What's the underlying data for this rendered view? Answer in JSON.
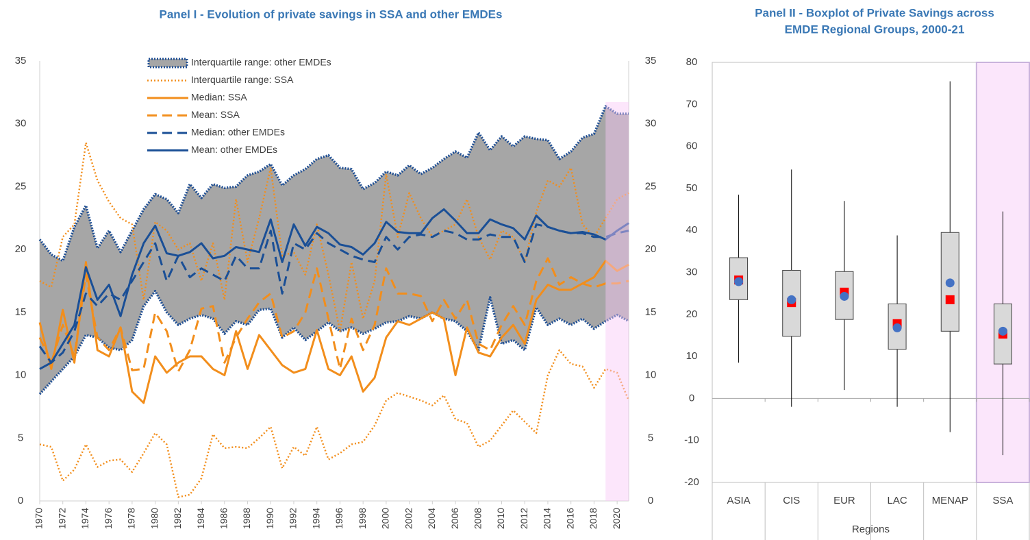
{
  "chart_data": [
    {
      "type": "line",
      "title": "Panel I - Evolution of private savings in SSA and other EMDEs",
      "x": [
        1970,
        1971,
        1972,
        1973,
        1974,
        1975,
        1976,
        1977,
        1978,
        1979,
        1980,
        1981,
        1982,
        1983,
        1984,
        1985,
        1986,
        1987,
        1988,
        1989,
        1990,
        1991,
        1992,
        1993,
        1994,
        1995,
        1996,
        1997,
        1998,
        1999,
        2000,
        2001,
        2002,
        2003,
        2004,
        2005,
        2006,
        2007,
        2008,
        2009,
        2010,
        2011,
        2012,
        2013,
        2014,
        2015,
        2016,
        2017,
        2018,
        2019,
        2020,
        2021
      ],
      "xlim": [
        1970,
        2021
      ],
      "xticks": [
        1970,
        1972,
        1974,
        1976,
        1978,
        1980,
        1982,
        1984,
        1986,
        1988,
        1990,
        1992,
        1994,
        1996,
        1998,
        2000,
        2002,
        2004,
        2006,
        2008,
        2010,
        2012,
        2014,
        2016,
        2018,
        2020
      ],
      "ylim": [
        0,
        35
      ],
      "yticks": [
        0,
        5,
        10,
        15,
        20,
        25,
        30,
        35
      ],
      "y2lim": [
        0,
        35
      ],
      "y2ticks": [
        0,
        5,
        10,
        15,
        20,
        25,
        30,
        35
      ],
      "highlight_x": [
        2019,
        2021
      ],
      "series": [
        {
          "name": "Interquartile range: other EMDEs",
          "color": "#1f4f94",
          "fill": "#a6a6a6",
          "style": "band",
          "upper": [
            20.8,
            19.6,
            19.1,
            21.8,
            23.5,
            20.1,
            21.5,
            19.8,
            21.5,
            23.2,
            24.4,
            24.0,
            22.9,
            25.2,
            24.1,
            25.2,
            24.9,
            25.0,
            25.9,
            26.2,
            26.8,
            25.1,
            25.9,
            26.4,
            27.2,
            27.5,
            26.5,
            26.4,
            24.8,
            25.3,
            26.2,
            25.9,
            26.7,
            26.0,
            26.5,
            27.2,
            27.8,
            27.3,
            29.3,
            27.9,
            29.0,
            28.2,
            29.0,
            28.8,
            28.7,
            27.2,
            27.8,
            28.9,
            29.2,
            31.4,
            30.8,
            30.8
          ],
          "lower": [
            8.5,
            9.5,
            10.5,
            11.5,
            13.2,
            13.0,
            12.2,
            12.0,
            12.8,
            15.5,
            16.7,
            15.0,
            14.0,
            14.5,
            14.8,
            14.5,
            13.3,
            14.3,
            14.0,
            15.2,
            15.3,
            13.0,
            13.8,
            12.8,
            13.5,
            14.2,
            13.5,
            13.8,
            13.3,
            13.7,
            14.2,
            14.3,
            14.7,
            14.5,
            15.0,
            14.5,
            14.3,
            13.5,
            12.0,
            16.2,
            12.5,
            12.8,
            12.0,
            15.4,
            14.0,
            14.5,
            14.0,
            14.5,
            13.7,
            14.3,
            14.8,
            14.3
          ]
        },
        {
          "name": "Interquartile range: SSA",
          "color": "#f28e1c",
          "style": "dotted",
          "upper": [
            17.5,
            17.0,
            21.0,
            22.0,
            28.5,
            25.5,
            23.8,
            22.5,
            22.0,
            16.0,
            22.2,
            21.5,
            20.0,
            20.5,
            17.5,
            20.5,
            16.0,
            24.0,
            19.0,
            22.5,
            26.5,
            19.5,
            19.8,
            18.0,
            22.0,
            18.0,
            13.5,
            19.0,
            14.5,
            17.5,
            26.0,
            21.0,
            24.5,
            22.5,
            21.0,
            21.5,
            22.0,
            24.0,
            21.0,
            19.2,
            21.5,
            21.0,
            19.0,
            23.0,
            25.5,
            25.0,
            26.5,
            22.0,
            21.0,
            22.5,
            24.0,
            24.5
          ],
          "lower": [
            4.5,
            4.3,
            1.6,
            2.5,
            4.5,
            2.7,
            3.2,
            3.3,
            2.3,
            3.8,
            5.4,
            4.5,
            0.3,
            0.5,
            1.8,
            5.3,
            4.2,
            4.3,
            4.2,
            5.0,
            5.9,
            2.6,
            4.3,
            3.6,
            5.9,
            3.3,
            3.8,
            4.5,
            4.7,
            6.0,
            8.0,
            8.6,
            8.3,
            8.0,
            7.6,
            8.4,
            6.5,
            6.2,
            4.3,
            4.8,
            6.0,
            7.2,
            6.3,
            5.4,
            10.0,
            12.0,
            10.9,
            10.7,
            9.0,
            10.5,
            10.2,
            8.0
          ]
        },
        {
          "name": "Median: SSA",
          "color": "#f28e1c",
          "style": "solid",
          "values": [
            14.2,
            10.5,
            15.2,
            11.0,
            19.0,
            12.0,
            11.5,
            13.8,
            8.7,
            7.8,
            11.5,
            10.2,
            11.0,
            11.5,
            11.5,
            10.5,
            10.0,
            13.5,
            10.5,
            13.2,
            12.0,
            10.8,
            10.2,
            10.5,
            13.6,
            10.5,
            10.0,
            11.5,
            8.7,
            9.8,
            13.0,
            14.3,
            14.0,
            14.5,
            15.0,
            14.5,
            10.0,
            13.8,
            11.8,
            11.5,
            13.0,
            14.0,
            12.5,
            16.0,
            17.2,
            16.8,
            16.8,
            17.3,
            17.8,
            19.1,
            18.3,
            18.8
          ]
        },
        {
          "name": "Mean: SSA",
          "color": "#f28e1c",
          "style": "dashed",
          "values": [
            13.0,
            11.0,
            14.0,
            11.5,
            18.0,
            13.0,
            12.0,
            13.8,
            10.4,
            10.5,
            15.0,
            13.5,
            10.3,
            12.0,
            15.3,
            15.5,
            11.0,
            13.0,
            14.5,
            15.8,
            16.5,
            13.0,
            13.5,
            15.0,
            18.5,
            14.5,
            10.5,
            14.5,
            12.0,
            14.0,
            18.5,
            16.5,
            16.5,
            16.3,
            14.3,
            16.0,
            14.5,
            16.0,
            12.5,
            12.0,
            14.0,
            15.5,
            14.0,
            17.5,
            19.3,
            17.2,
            17.8,
            17.3,
            17.0,
            17.3,
            17.3,
            17.5
          ]
        },
        {
          "name": "Median: other EMDEs",
          "color": "#1a4f96",
          "style": "dashed",
          "values": [
            12.3,
            11.0,
            11.8,
            13.5,
            16.5,
            15.5,
            16.5,
            16.0,
            17.5,
            19.0,
            20.5,
            17.5,
            19.5,
            17.8,
            18.5,
            18.0,
            17.5,
            19.5,
            18.5,
            18.5,
            21.5,
            16.5,
            20.5,
            20.0,
            21.3,
            20.5,
            20.0,
            19.5,
            19.2,
            19.0,
            21.0,
            20.0,
            21.0,
            21.2,
            21.0,
            21.5,
            21.3,
            20.8,
            20.8,
            21.2,
            21.0,
            21.0,
            19.0,
            22.0,
            21.8,
            21.5,
            21.3,
            21.3,
            21.0,
            21.0,
            21.3,
            21.5
          ]
        },
        {
          "name": "Mean: other EMDEs",
          "color": "#1a4f96",
          "style": "solid",
          "values": [
            10.5,
            11.0,
            12.5,
            14.0,
            18.6,
            16.0,
            17.2,
            14.7,
            18.0,
            20.5,
            21.9,
            19.7,
            19.5,
            19.8,
            20.5,
            19.3,
            19.5,
            20.2,
            20.0,
            19.8,
            22.4,
            19.0,
            22.0,
            20.3,
            21.8,
            21.3,
            20.4,
            20.2,
            19.6,
            20.5,
            22.2,
            21.4,
            21.3,
            21.3,
            22.5,
            23.2,
            22.3,
            21.3,
            21.3,
            22.4,
            22.0,
            21.7,
            20.8,
            22.7,
            21.8,
            21.5,
            21.3,
            21.4,
            21.2,
            20.8,
            21.5,
            22.1
          ]
        }
      ]
    },
    {
      "type": "box",
      "title": [
        "Panel II - Boxplot of Private Savings across",
        "EMDE Regional Groups, 2000-21"
      ],
      "xlabel": "Regions",
      "categories": [
        "ASIA",
        "CIS",
        "EUR",
        "LAC",
        "MENAP",
        "SSA"
      ],
      "ylim": [
        -20,
        80
      ],
      "yticks": [
        -20,
        -10,
        0,
        10,
        20,
        30,
        40,
        50,
        60,
        70,
        80
      ],
      "highlight_category": "SSA",
      "box_color": "#d9d9d9",
      "square_color": "#ff0000",
      "circle_color": "#4472c4",
      "boxes": [
        {
          "min": 8.5,
          "q1": 23.5,
          "q3": 33.5,
          "max": 48.5,
          "square": 28.2,
          "circle": 27.8
        },
        {
          "min": -2,
          "q1": 14.8,
          "q3": 30.5,
          "max": 54.5,
          "square": 22.8,
          "circle": 23.5
        },
        {
          "min": 2,
          "q1": 18.8,
          "q3": 30.2,
          "max": 47,
          "square": 25.3,
          "circle": 24.3
        },
        {
          "min": -2,
          "q1": 11.7,
          "q3": 22.5,
          "max": 38.8,
          "square": 17.8,
          "circle": 16.8
        },
        {
          "min": -8,
          "q1": 16,
          "q3": 39.5,
          "max": 75.5,
          "square": 23.5,
          "circle": 27.5
        },
        {
          "min": -13.5,
          "q1": 8.2,
          "q3": 22.5,
          "max": 44.5,
          "square": 15.3,
          "circle": 16
        }
      ]
    }
  ]
}
